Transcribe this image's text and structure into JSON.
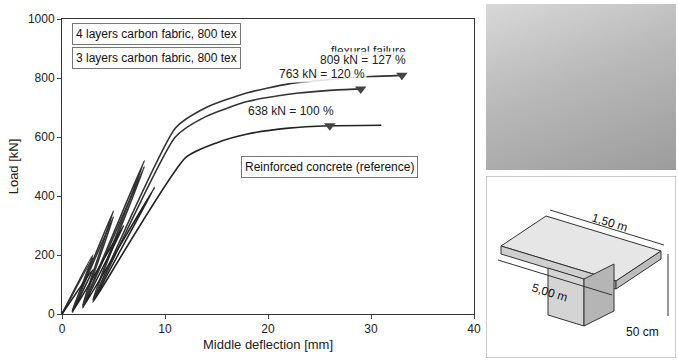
{
  "chart_data": {
    "type": "line",
    "xlabel": "Middle deflection [mm]",
    "ylabel": "Load [kN]",
    "xlim": [
      0,
      40
    ],
    "xticks": [
      0,
      10,
      20,
      30,
      40
    ],
    "ylim": [
      0,
      1000
    ],
    "yticks": [
      0,
      200,
      400,
      600,
      800,
      1000
    ],
    "grid": false,
    "series": [
      {
        "name": "4 layers carbon fabric, 800 tex",
        "color": "#333333",
        "x": [
          0,
          3,
          1,
          5,
          2,
          8,
          3,
          11,
          14,
          18,
          22,
          26,
          30,
          33
        ],
        "values": [
          0,
          200,
          10,
          350,
          30,
          520,
          50,
          630,
          700,
          750,
          780,
          795,
          805,
          809
        ]
      },
      {
        "name": "3 layers carbon fabric, 800 tex",
        "color": "#333333",
        "x": [
          0,
          3,
          1,
          5,
          2,
          8,
          3,
          11,
          14,
          18,
          22,
          26,
          29
        ],
        "values": [
          0,
          190,
          10,
          330,
          25,
          500,
          45,
          600,
          670,
          720,
          745,
          758,
          763
        ]
      },
      {
        "name": "Reinforced concrete (reference)",
        "color": "#222222",
        "x": [
          0,
          3,
          1,
          6,
          2,
          9,
          3,
          12,
          15,
          18,
          22,
          26,
          31
        ],
        "values": [
          0,
          150,
          5,
          300,
          20,
          430,
          40,
          530,
          580,
          610,
          630,
          638,
          640
        ]
      }
    ],
    "annotations": [
      {
        "text": "flexural failure",
        "x": 33,
        "y": 860
      },
      {
        "text": "809 kN = 127 %",
        "x": 33,
        "y": 809,
        "marker": "triangle-down"
      },
      {
        "text": "763 kN = 120 %",
        "x": 29,
        "y": 763,
        "marker": "triangle-down"
      },
      {
        "text": "638 kN = 100 %",
        "x": 26,
        "y": 638,
        "marker": "triangle-down"
      }
    ]
  },
  "diagram": {
    "labels": [
      "1,50 m",
      "5,00 m",
      "50 cm"
    ]
  }
}
